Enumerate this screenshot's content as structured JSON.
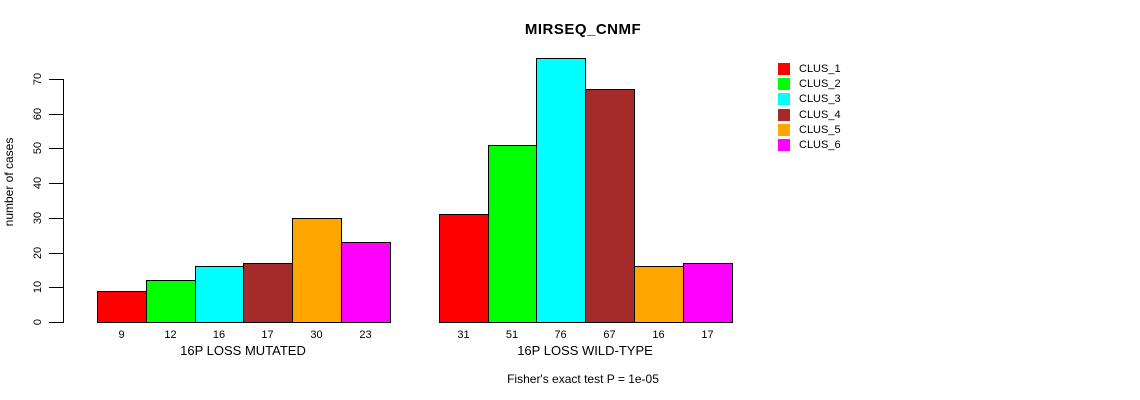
{
  "page": {
    "background": "#FFFFFF"
  },
  "chart_data": {
    "type": "bar",
    "title": "MIRSEQ_CNMF",
    "ylabel": "number of cases",
    "xlabel": "",
    "ylim": [
      0,
      70
    ],
    "yticks": [
      0,
      10,
      20,
      30,
      40,
      50,
      60,
      70
    ],
    "grid": false,
    "legend_position": "right-outside",
    "groups": [
      {
        "label": "16P LOSS MUTATED",
        "values": [
          9,
          12,
          16,
          17,
          30,
          23
        ]
      },
      {
        "label": "16P LOSS WILD-TYPE",
        "values": [
          31,
          51,
          76,
          67,
          16,
          17
        ]
      }
    ],
    "series_colors": [
      "#FF0000",
      "#00FF00",
      "#00FFFF",
      "#A52A2A",
      "#FFA500",
      "#FF00FF"
    ],
    "bar_border_color": "#000000",
    "legend": [
      {
        "label": "CLUS_1",
        "color": "#FF0000"
      },
      {
        "label": "CLUS_2",
        "color": "#00FF00"
      },
      {
        "label": "CLUS_3",
        "color": "#00FFFF"
      },
      {
        "label": "CLUS_4",
        "color": "#A52A2A"
      },
      {
        "label": "CLUS_5",
        "color": "#FFA500"
      },
      {
        "label": "CLUS_6",
        "color": "#FF00FF"
      }
    ],
    "annotation": "Fisher's exact test P = 1e-05"
  }
}
